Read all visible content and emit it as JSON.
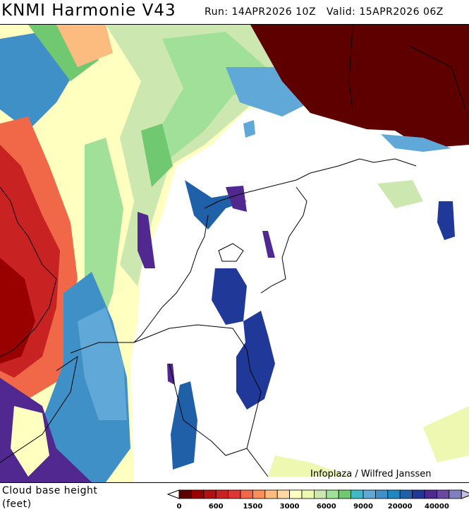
{
  "header": {
    "title": "KNMI Harmonie V43",
    "run": "Run: 14APR2026 10Z",
    "valid": "Valid: 15APR2026 06Z"
  },
  "map": {
    "credit": "Infoplaza / Wilfred Janssen"
  },
  "legend": {
    "label_line1": "Cloud base height",
    "label_line2": "(feet)",
    "colors": [
      "#5e0000",
      "#990000",
      "#b01212",
      "#c82222",
      "#e03535",
      "#f06848",
      "#fa9058",
      "#fcbc80",
      "#fdd8a0",
      "#ffffc0",
      "#eef8b0",
      "#cce8b0",
      "#a0e098",
      "#70c870",
      "#40b8c8",
      "#60a8d8",
      "#4090c8",
      "#2088c0",
      "#2060a8",
      "#203898",
      "#502890",
      "#6848a0",
      "#8080c0"
    ],
    "ticks": [
      "0",
      "600",
      "1500",
      "3000",
      "6000",
      "9000",
      "20000",
      "40000"
    ]
  }
}
